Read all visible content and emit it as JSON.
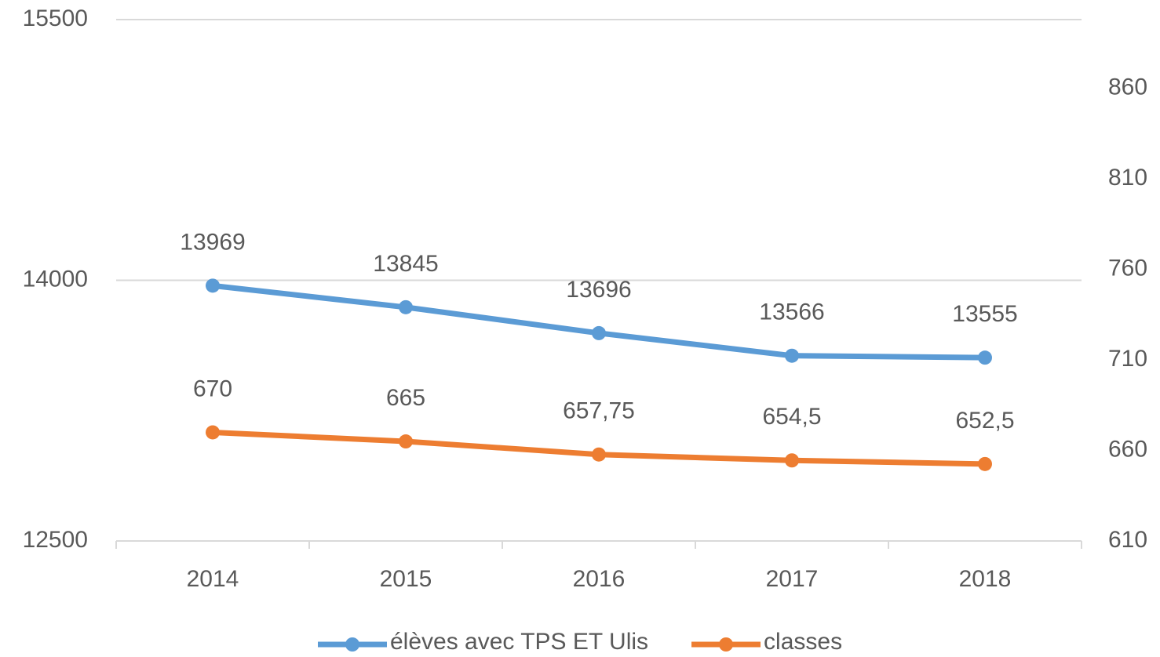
{
  "chart_data": {
    "type": "line",
    "categories": [
      "2014",
      "2015",
      "2016",
      "2017",
      "2018"
    ],
    "series": [
      {
        "name": "élèves avec TPS ET Ulis",
        "color": "#5b9bd5",
        "values": [
          13969,
          13845,
          13696,
          13566,
          13555
        ]
      },
      {
        "name": "classes",
        "color": "#ed7d31",
        "axis": "y2",
        "values": [
          670,
          665,
          657.75,
          654.5,
          652.5
        ],
        "value_labels": [
          "670",
          "665",
          "657,75",
          "654,5",
          "652,5"
        ]
      }
    ],
    "ylim": [
      12500,
      15500
    ],
    "yticks": [
      12500,
      14000,
      15500
    ],
    "y2lim": [
      610,
      898
    ],
    "y2ticks": [
      610,
      660,
      710,
      760,
      810,
      860
    ],
    "grid": true,
    "legend": "bottom"
  }
}
